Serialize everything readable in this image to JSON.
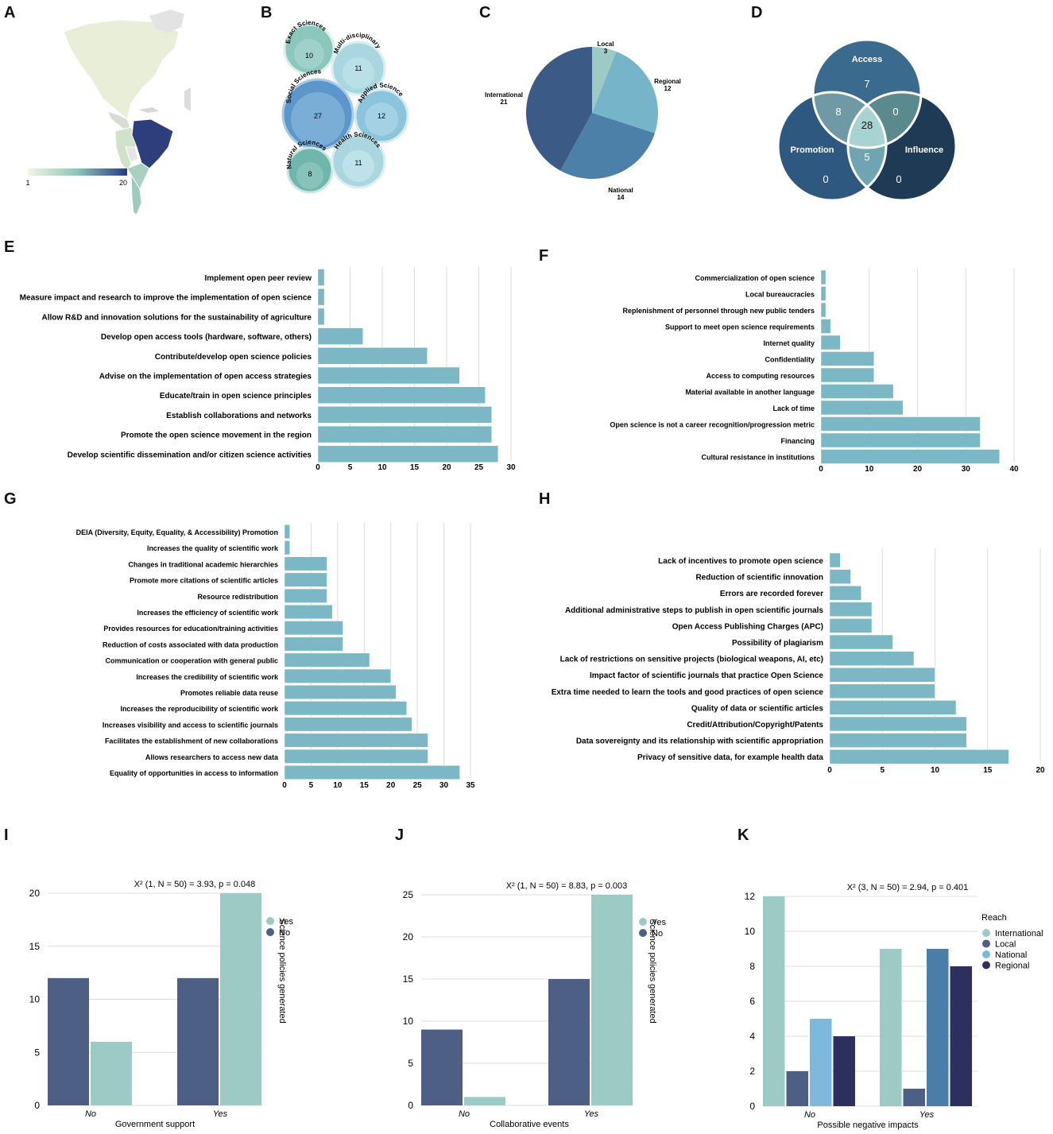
{
  "panel_labels": [
    "A",
    "B",
    "C",
    "D",
    "E",
    "F",
    "G",
    "H",
    "I",
    "J",
    "K"
  ],
  "colors": {
    "teal": "#7bb7c4",
    "tealEdge": "#5a9aa8",
    "navy": "#4e5f86",
    "mint": "#9ccac5",
    "grid": "#dcdcdc",
    "dark": "#2d3a6b",
    "steel": "#4a7ea8",
    "sky": "#7db9de"
  },
  "map": {
    "scale_min": "1",
    "scale_max": "20"
  },
  "bubbles": [
    {
      "name": "Exact Sciences",
      "value": "10"
    },
    {
      "name": "Multi-disciplinary",
      "value": "11"
    },
    {
      "name": "Social Sciences",
      "value": "27"
    },
    {
      "name": "Applied Science",
      "value": "12"
    },
    {
      "name": "Natural Sciences",
      "value": "8"
    },
    {
      "name": "Health Sciences",
      "value": "11"
    }
  ],
  "venn": {
    "sets": [
      "Access",
      "Promotion",
      "Influence"
    ],
    "values": {
      "access_only": "7",
      "promotion_only": "0",
      "influence_only": "0",
      "access_promotion": "8",
      "access_influence": "0",
      "promotion_influence": "5",
      "all": "28"
    }
  },
  "chart_data": [
    {
      "id": "C",
      "type": "pie",
      "labels": [
        "Local",
        "Regional",
        "National",
        "International"
      ],
      "values": [
        3,
        12,
        14,
        21
      ],
      "colors": [
        "#9ccac5",
        "#75b4c9",
        "#4d80a8",
        "#3b5a86"
      ]
    },
    {
      "id": "E",
      "type": "bar",
      "orientation": "horizontal",
      "xlim": [
        0,
        30
      ],
      "ticks": [
        0,
        5,
        10,
        15,
        20,
        25,
        30
      ],
      "categories": [
        "Implement open peer review",
        "Measure impact and research to improve the implementation of open science",
        "Allow R&D and innovation solutions for the sustainability of agriculture",
        "Develop open access tools (hardware, software, others)",
        "Contribute/develop open science policies",
        "Advise on the implementation of open access strategies",
        "Educate/train in open science principles",
        "Establish collaborations and networks",
        "Promote the open science movement in the region",
        "Develop scientific dissemination and/or citizen science activities"
      ],
      "values": [
        1,
        1,
        1,
        7,
        17,
        22,
        26,
        27,
        27,
        28
      ]
    },
    {
      "id": "F",
      "type": "bar",
      "orientation": "horizontal",
      "xlim": [
        0,
        40
      ],
      "ticks": [
        0,
        10,
        20,
        30,
        40
      ],
      "categories": [
        "Commercialization of open science",
        "Local bureaucracies",
        "Replenishment of personnel through new public tenders",
        "Support to meet open science requirements",
        "Internet quality",
        "Confidentiality",
        "Access to computing resources",
        "Material available in another language",
        "Lack of time",
        "Open science is not a career recognition/progression metric",
        "Financing",
        "Cultural resistance in institutions"
      ],
      "values": [
        1,
        1,
        1,
        2,
        4,
        11,
        11,
        15,
        17,
        33,
        33,
        37
      ]
    },
    {
      "id": "G",
      "type": "bar",
      "orientation": "horizontal",
      "xlim": [
        0,
        35
      ],
      "ticks": [
        0,
        5,
        10,
        15,
        20,
        25,
        30,
        35
      ],
      "categories": [
        "DEIA (Diversity, Equity, Equality, & Accessibility) Promotion",
        "Increases the quality of scientific work",
        "Changes in traditional academic hierarchies",
        "Promote more citations of scientific articles",
        "Resource redistribution",
        "Increases the efficiency of scientific work",
        "Provides resources for education/training activities",
        "Reduction of costs associated with data production",
        "Communication or cooperation with general public",
        "Increases the credibility of scientific work",
        "Promotes reliable data reuse",
        "Increases the reproducibility of scientific work",
        "Increases visibility and access to scientific journals",
        "Facilitates the establishment of new collaborations",
        "Allows researchers to access new data",
        "Equality of opportunities in access to information"
      ],
      "values": [
        1,
        1,
        8,
        8,
        8,
        9,
        11,
        11,
        16,
        20,
        21,
        23,
        24,
        27,
        27,
        33
      ]
    },
    {
      "id": "H",
      "type": "bar",
      "orientation": "horizontal",
      "xlim": [
        0,
        20
      ],
      "ticks": [
        0,
        5,
        10,
        15,
        20
      ],
      "categories": [
        "Lack of incentives to promote open science",
        "Reduction of scientific innovation",
        "Errors are recorded forever",
        "Additional administrative steps to publish in open scientific journals",
        "Open Access Publishing Charges (APC)",
        "Possibility of plagiarism",
        "Lack of restrictions on sensitive projects (biological weapons, AI, etc)",
        "Impact factor of scientific journals that practice Open Science",
        "Extra time needed to learn the tools and good practices of open science",
        "Quality of data or scientific articles",
        "Credit/Attribution/Copyright/Patents",
        "Data sovereignty and its relationship with scientific appropriation",
        "Privacy of sensitive data, for example health data"
      ],
      "values": [
        1,
        2,
        3,
        4,
        4,
        6,
        8,
        10,
        10,
        12,
        13,
        13,
        17
      ]
    },
    {
      "id": "I",
      "type": "bar",
      "title": "X² (1, N = 50) = 3.93, p = 0.048",
      "xlabel": "Government support",
      "ylabel": "Science policies generated",
      "ylim": [
        0,
        20
      ],
      "ticks": [
        0,
        5,
        10,
        15,
        20
      ],
      "categories": [
        "No",
        "Yes"
      ],
      "legend_title": "",
      "series": [
        {
          "name": "No",
          "values": [
            12,
            12
          ],
          "color": "#4e5f86"
        },
        {
          "name": "Yes",
          "values": [
            6,
            20
          ],
          "color": "#9ccac5"
        }
      ],
      "legend": [
        "Yes",
        "No"
      ]
    },
    {
      "id": "J",
      "type": "bar",
      "title": "X² (1, N = 50) = 8.83, p = 0.003",
      "xlabel": "Collaborative events",
      "ylabel": "Science policies generated",
      "ylim": [
        0,
        25
      ],
      "ticks": [
        0,
        5,
        10,
        15,
        20,
        25
      ],
      "categories": [
        "No",
        "Yes"
      ],
      "legend_title": "",
      "series": [
        {
          "name": "No",
          "values": [
            9,
            15
          ],
          "color": "#4e5f86"
        },
        {
          "name": "Yes",
          "values": [
            1,
            25
          ],
          "color": "#9ccac5"
        }
      ],
      "legend": [
        "Yes",
        "No"
      ]
    },
    {
      "id": "K",
      "type": "bar",
      "title": "X² (3, N = 50) = 2.94, p = 0.401",
      "xlabel": "Possible negative impacts",
      "ylabel": "",
      "ylim": [
        0,
        12
      ],
      "ticks": [
        0,
        2,
        4,
        6,
        8,
        10,
        12
      ],
      "categories": [
        "No",
        "Yes"
      ],
      "legend_title": "Reach",
      "series": [
        {
          "name": "International",
          "values": [
            12,
            9
          ],
          "color": "#9ccac5"
        },
        {
          "name": "Local",
          "values": [
            2,
            1
          ],
          "color": "#4e5f86"
        },
        {
          "name": "National",
          "values": [
            5,
            9
          ],
          "color": "#7db9de"
        },
        {
          "name": "Regional",
          "values": [
            4,
            8
          ],
          "color": "#2d2f5e"
        }
      ],
      "series_k_colors_yes": {
        "National": "#4a7ea8"
      },
      "legend": [
        "International",
        "Local",
        "National",
        "Regional"
      ]
    }
  ]
}
